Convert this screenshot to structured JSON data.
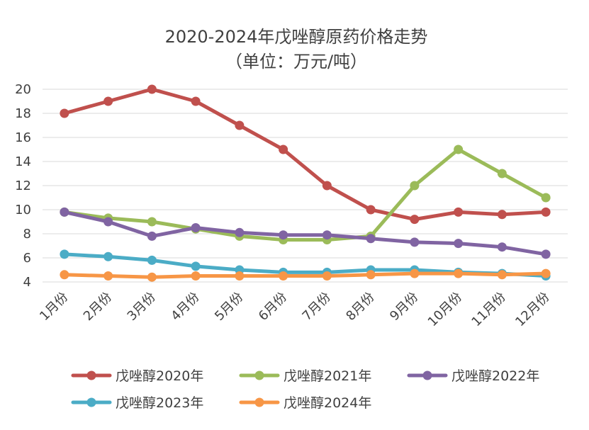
{
  "chart_data": {
    "type": "line",
    "title": "2020-2024年戊唑醇原药价格走势",
    "subtitle": "（单位：万元/吨）",
    "categories": [
      "1月份",
      "2月份",
      "3月份",
      "4月份",
      "5月份",
      "6月份",
      "7月份",
      "8月份",
      "9月份",
      "10月份",
      "11月份",
      "12月份"
    ],
    "y_ticks": [
      "4",
      "6",
      "8",
      "10",
      "12",
      "14",
      "16",
      "18",
      "20"
    ],
    "ylim": [
      4,
      20
    ],
    "grid": true,
    "legend_position": "bottom",
    "series": [
      {
        "name": "戊唑醇2020年",
        "color": "#C0504D",
        "values": [
          18,
          19,
          20,
          19,
          17,
          15,
          12,
          10,
          9.2,
          9.8,
          9.6,
          9.8
        ]
      },
      {
        "name": "戊唑醇2021年",
        "color": "#9BBB59",
        "values": [
          9.8,
          9.3,
          9,
          8.4,
          7.8,
          7.5,
          7.5,
          7.8,
          12,
          15,
          13,
          11
        ]
      },
      {
        "name": "戊唑醇2022年",
        "color": "#8064A2",
        "values": [
          9.8,
          9,
          7.8,
          8.5,
          8.1,
          7.9,
          7.9,
          7.6,
          7.3,
          7.2,
          6.9,
          6.3
        ]
      },
      {
        "name": "戊唑醇2023年",
        "color": "#4BACC6",
        "values": [
          6.3,
          6.1,
          5.8,
          5.3,
          5,
          4.8,
          4.8,
          5,
          5,
          4.8,
          4.7,
          4.5
        ]
      },
      {
        "name": "戊唑醇2024年",
        "color": "#F79646",
        "values": [
          4.6,
          4.5,
          4.4,
          4.5,
          4.5,
          4.5,
          4.5,
          4.6,
          4.7,
          4.7,
          4.6,
          4.7
        ]
      }
    ]
  }
}
